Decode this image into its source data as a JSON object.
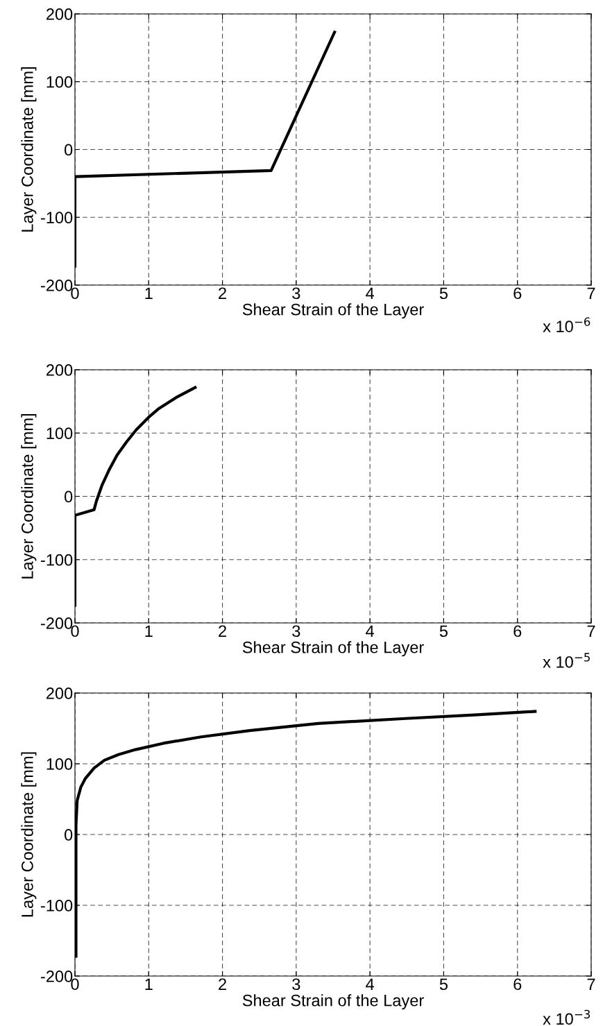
{
  "chart_data": [
    {
      "type": "line",
      "xlabel": "Shear Strain of the Layer",
      "ylabel": "Layer Coordinate [mm]",
      "annotations": [
        "x 10$^{−6}$"
      ],
      "xlim": [
        0,
        7
      ],
      "xticks": [
        0,
        1,
        2,
        3,
        4,
        5,
        6,
        7
      ],
      "ylim": [
        -200,
        200
      ],
      "yticks": [
        -200,
        -100,
        0,
        100,
        200
      ],
      "grid": true,
      "line_style": "solid",
      "marker": "none",
      "series": [
        {
          "color": "#000000",
          "x": [
            0,
            0,
            2.66,
            3.52
          ],
          "values": [
            -172,
            -40,
            -31,
            173
          ]
        }
      ]
    },
    {
      "type": "line",
      "xlabel": "Shear Strain of the Layer",
      "ylabel": "Layer Coordinate [mm]",
      "annotations": [
        "x 10$^{−5}$"
      ],
      "xlim": [
        0,
        7
      ],
      "xticks": [
        0,
        1,
        2,
        3,
        4,
        5,
        6,
        7
      ],
      "ylim": [
        -200,
        200
      ],
      "yticks": [
        -200,
        -100,
        0,
        100,
        200
      ],
      "grid": true,
      "line_style": "solid",
      "marker": "none",
      "series": [
        {
          "color": "#000000",
          "x": [
            0,
            0,
            0.26,
            0.29,
            0.365,
            0.46,
            0.57,
            0.7,
            0.83,
            1.0,
            1.13,
            1.37,
            1.63
          ],
          "values": [
            -172,
            -30,
            -21,
            -8,
            17,
            41,
            65,
            86,
            105,
            125,
            138,
            156,
            172
          ]
        }
      ]
    },
    {
      "type": "line",
      "xlabel": "Shear Strain of the Layer",
      "ylabel": "Layer Coordinate [mm]",
      "annotations": [
        "x 10$^{−3}$"
      ],
      "xlim": [
        0,
        7
      ],
      "xticks": [
        0,
        1,
        2,
        3,
        4,
        5,
        6,
        7
      ],
      "ylim": [
        -200,
        200
      ],
      "yticks": [
        -200,
        -100,
        0,
        100,
        200
      ],
      "grid": true,
      "line_style": "solid",
      "marker": "none",
      "series": [
        {
          "color": "#000000",
          "x": [
            0.014,
            0.014,
            0.03,
            0.08,
            0.14,
            0.26,
            0.4,
            0.59,
            0.82,
            1.2,
            1.71,
            2.37,
            3.3,
            4.48,
            5.41,
            6.24
          ],
          "values": [
            -172,
            13,
            48,
            67,
            79,
            94,
            105,
            113,
            120,
            129,
            138,
            147,
            157,
            164,
            169,
            174
          ]
        }
      ]
    }
  ]
}
